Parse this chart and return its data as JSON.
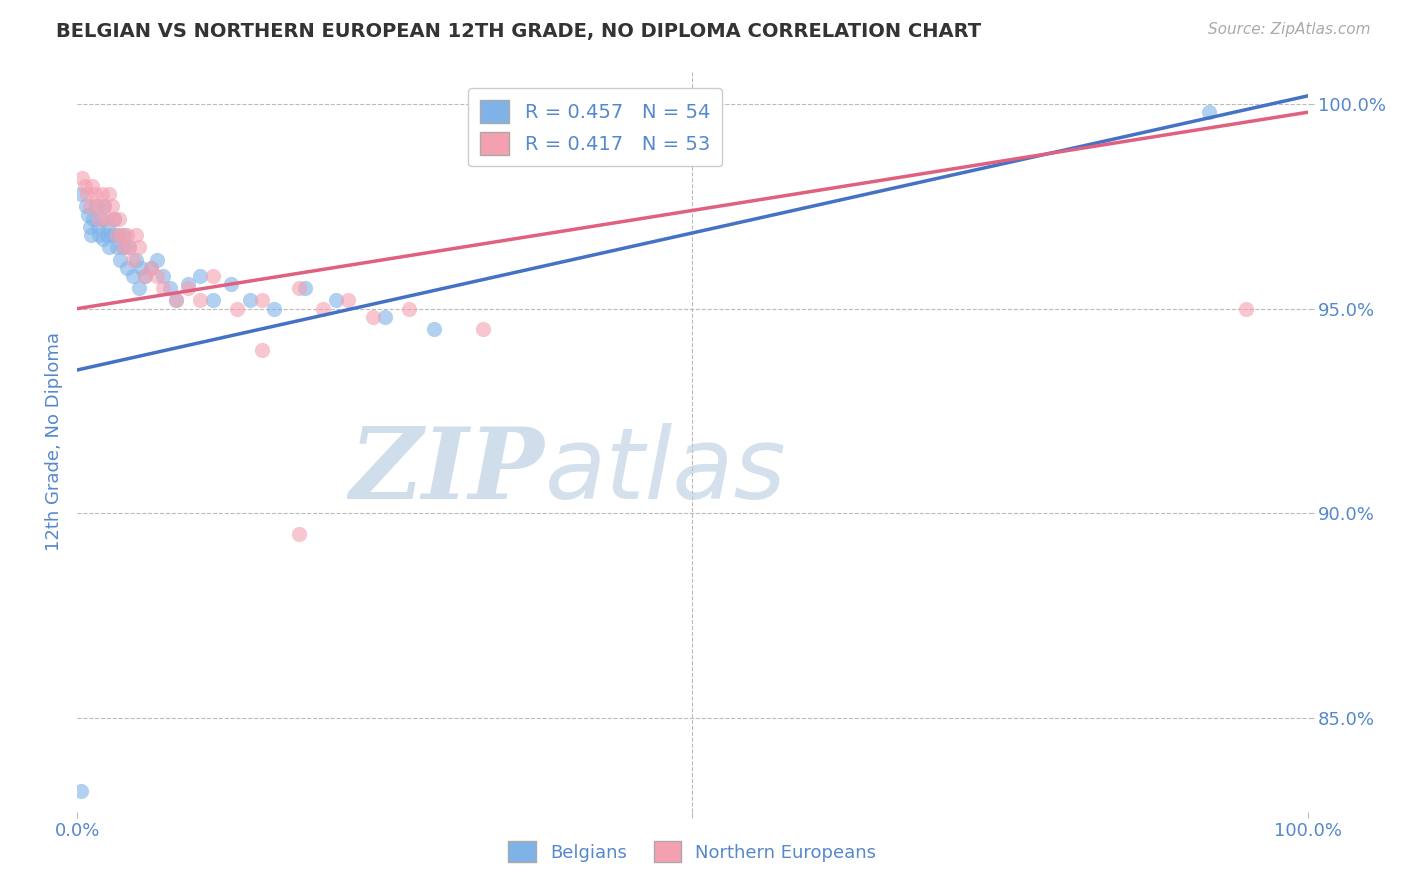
{
  "title": "BELGIAN VS NORTHERN EUROPEAN 12TH GRADE, NO DIPLOMA CORRELATION CHART",
  "source": "Source: ZipAtlas.com",
  "ylabel": "12th Grade, No Diploma",
  "legend_labels": [
    "Belgians",
    "Northern Europeans"
  ],
  "blue_color": "#7FB3E8",
  "pink_color": "#F4A0B0",
  "blue_line_color": "#4472C4",
  "pink_line_color": "#E06080",
  "r_blue": 0.457,
  "n_blue": 54,
  "r_pink": 0.417,
  "n_pink": 53,
  "xlim": [
    0.0,
    1.0
  ],
  "ylim": [
    0.827,
    1.008
  ],
  "yticks": [
    0.85,
    0.9,
    0.95,
    1.0
  ],
  "ytick_labels": [
    "85.0%",
    "90.0%",
    "95.0%",
    "100.0%"
  ],
  "xticks": [
    0.0,
    0.5,
    1.0
  ],
  "xtick_labels": [
    "0.0%",
    "",
    "100.0%"
  ],
  "watermark_zip": "ZIP",
  "watermark_atlas": "atlas",
  "blue_x": [
    0.003,
    0.007,
    0.009,
    0.01,
    0.011,
    0.013,
    0.015,
    0.017,
    0.018,
    0.02,
    0.021,
    0.022,
    0.024,
    0.025,
    0.026,
    0.028,
    0.03,
    0.032,
    0.033,
    0.035,
    0.037,
    0.038,
    0.04,
    0.042,
    0.045,
    0.048,
    0.05,
    0.052,
    0.055,
    0.06,
    0.065,
    0.07,
    0.075,
    0.08,
    0.09,
    0.1,
    0.11,
    0.125,
    0.14,
    0.16,
    0.185,
    0.21,
    0.25,
    0.29,
    0.003,
    0.92
  ],
  "blue_y": [
    0.978,
    0.975,
    0.973,
    0.97,
    0.968,
    0.972,
    0.975,
    0.97,
    0.968,
    0.972,
    0.967,
    0.975,
    0.968,
    0.97,
    0.965,
    0.968,
    0.972,
    0.965,
    0.968,
    0.962,
    0.965,
    0.968,
    0.96,
    0.965,
    0.958,
    0.962,
    0.955,
    0.96,
    0.958,
    0.96,
    0.962,
    0.958,
    0.955,
    0.952,
    0.956,
    0.958,
    0.952,
    0.956,
    0.952,
    0.95,
    0.955,
    0.952,
    0.948,
    0.945,
    0.832,
    0.998
  ],
  "pink_x": [
    0.004,
    0.006,
    0.008,
    0.01,
    0.012,
    0.014,
    0.016,
    0.018,
    0.02,
    0.022,
    0.024,
    0.026,
    0.028,
    0.03,
    0.032,
    0.034,
    0.036,
    0.038,
    0.04,
    0.042,
    0.045,
    0.048,
    0.05,
    0.055,
    0.06,
    0.065,
    0.07,
    0.08,
    0.09,
    0.1,
    0.11,
    0.13,
    0.15,
    0.18,
    0.22,
    0.27,
    0.33,
    0.15,
    0.2,
    0.24,
    0.18,
    0.95
  ],
  "pink_y": [
    0.982,
    0.98,
    0.978,
    0.975,
    0.98,
    0.978,
    0.975,
    0.972,
    0.978,
    0.975,
    0.972,
    0.978,
    0.975,
    0.972,
    0.968,
    0.972,
    0.968,
    0.965,
    0.968,
    0.965,
    0.962,
    0.968,
    0.965,
    0.958,
    0.96,
    0.958,
    0.955,
    0.952,
    0.955,
    0.952,
    0.958,
    0.95,
    0.952,
    0.955,
    0.952,
    0.95,
    0.945,
    0.94,
    0.95,
    0.948,
    0.895,
    0.95
  ],
  "background_color": "#FFFFFF",
  "grid_color": "#BBBBBB",
  "title_color": "#333333",
  "axis_label_color": "#5588CC",
  "tick_label_color": "#5588CC"
}
